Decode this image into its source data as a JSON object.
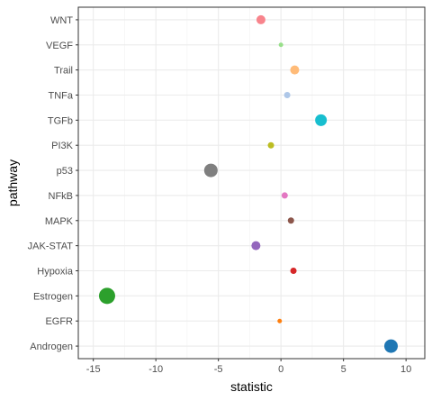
{
  "chart_data": {
    "type": "scatter",
    "xlabel": "statistic",
    "ylabel": "pathway",
    "xlim": [
      -16.2,
      11.5
    ],
    "x_ticks": [
      -15,
      -10,
      -5,
      0,
      5,
      10
    ],
    "x_tick_labels": [
      "-15",
      "-10",
      "-5",
      "0",
      "5",
      "10"
    ],
    "grid": true,
    "legend": "none",
    "points": [
      {
        "pathway": "WNT",
        "statistic": -1.6,
        "size": 3,
        "color": "#F8848C"
      },
      {
        "pathway": "VEGF",
        "statistic": 0.0,
        "size": 1,
        "color": "#98DF8A"
      },
      {
        "pathway": "Trail",
        "statistic": 1.1,
        "size": 3,
        "color": "#FFBB78"
      },
      {
        "pathway": "TNFa",
        "statistic": 0.5,
        "size": 2,
        "color": "#AEC7E8"
      },
      {
        "pathway": "TGFb",
        "statistic": 3.2,
        "size": 4,
        "color": "#17BECF"
      },
      {
        "pathway": "PI3K",
        "statistic": -0.8,
        "size": 2,
        "color": "#BCBD22"
      },
      {
        "pathway": "p53",
        "statistic": -5.6,
        "size": 5,
        "color": "#7F7F7F"
      },
      {
        "pathway": "NFkB",
        "statistic": 0.3,
        "size": 2,
        "color": "#E377C2"
      },
      {
        "pathway": "MAPK",
        "statistic": 0.8,
        "size": 2,
        "color": "#8C564B"
      },
      {
        "pathway": "JAK-STAT",
        "statistic": -2.0,
        "size": 3,
        "color": "#9467BD"
      },
      {
        "pathway": "Hypoxia",
        "statistic": 1.0,
        "size": 2,
        "color": "#D62728"
      },
      {
        "pathway": "Estrogen",
        "statistic": -13.9,
        "size": 6,
        "color": "#2CA02C"
      },
      {
        "pathway": "EGFR",
        "statistic": -0.1,
        "size": 1,
        "color": "#FF7F0E"
      },
      {
        "pathway": "Androgen",
        "statistic": 8.8,
        "size": 5,
        "color": "#1F77B4"
      }
    ]
  }
}
